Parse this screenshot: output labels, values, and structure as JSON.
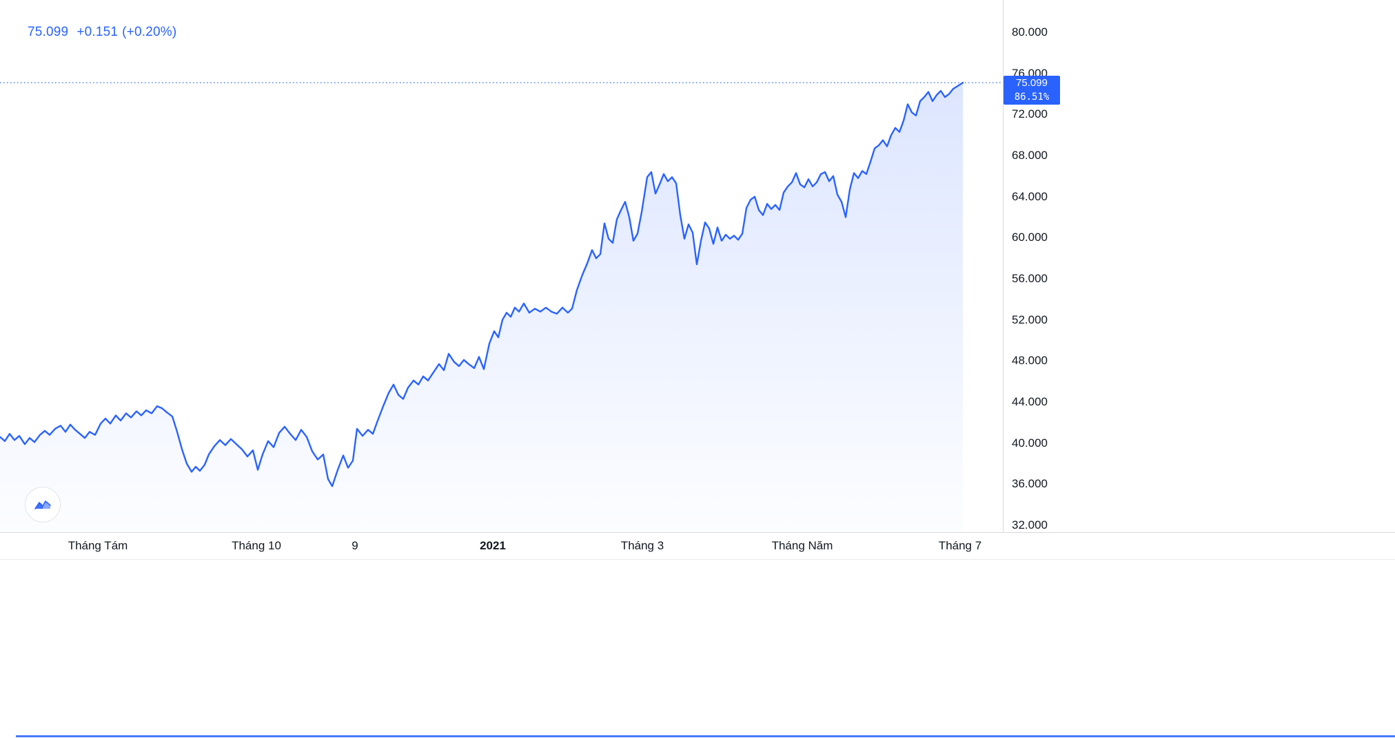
{
  "quote": {
    "last": "75.099",
    "change": "+0.151",
    "change_pct": "(+0.20%)"
  },
  "price_badge": {
    "value": "75.099",
    "percent": "86.51%"
  },
  "colors": {
    "accent": "#2962ff",
    "text": "#131722",
    "axis_line": "#d6d9e0",
    "badge_bg": "#2962ff",
    "badge_text": "#ffffff"
  },
  "chart_data": {
    "type": "area",
    "title": "",
    "xlabel": "",
    "ylabel": "",
    "ylim": [
      32,
      80
    ],
    "grid": false,
    "line_color": "#2962ff",
    "fill_top": "rgba(41,98,255,0.16)",
    "fill_bottom": "rgba(41,98,255,0.01)",
    "last_price": 75.099,
    "change": "+0.151",
    "change_percent": "+0.20%",
    "range_percent": "86.51%",
    "y_ticks": [
      {
        "label": "80.000",
        "price": 80
      },
      {
        "label": "76.000",
        "price": 76
      },
      {
        "label": "72.000",
        "price": 72
      },
      {
        "label": "68.000",
        "price": 68
      },
      {
        "label": "64.000",
        "price": 64
      },
      {
        "label": "60.000",
        "price": 60
      },
      {
        "label": "56.000",
        "price": 56
      },
      {
        "label": "52.000",
        "price": 52
      },
      {
        "label": "48.000",
        "price": 48
      },
      {
        "label": "44.000",
        "price": 44
      },
      {
        "label": "40.000",
        "price": 40
      },
      {
        "label": "36.000",
        "price": 36
      },
      {
        "label": "32.000",
        "price": 32
      }
    ],
    "x_ticks": [
      {
        "label": "Tháng Tám",
        "x": 142,
        "bold": false
      },
      {
        "label": "Tháng 10",
        "x": 372,
        "bold": false
      },
      {
        "label": "9",
        "x": 515,
        "bold": false
      },
      {
        "label": "2021",
        "x": 715,
        "bold": true
      },
      {
        "label": "Tháng 3",
        "x": 932,
        "bold": false
      },
      {
        "label": "Tháng Năm",
        "x": 1164,
        "bold": false
      },
      {
        "label": "Tháng 7",
        "x": 1393,
        "bold": false
      }
    ],
    "series": [
      {
        "name": "price",
        "points": [
          [
            0,
            40.6
          ],
          [
            7,
            40.2
          ],
          [
            14,
            40.9
          ],
          [
            21,
            40.3
          ],
          [
            28,
            40.7
          ],
          [
            36,
            39.9
          ],
          [
            43,
            40.5
          ],
          [
            50,
            40.1
          ],
          [
            58,
            40.8
          ],
          [
            65,
            41.2
          ],
          [
            72,
            40.8
          ],
          [
            80,
            41.4
          ],
          [
            88,
            41.7
          ],
          [
            95,
            41.1
          ],
          [
            102,
            41.8
          ],
          [
            109,
            41.3
          ],
          [
            116,
            40.9
          ],
          [
            123,
            40.5
          ],
          [
            130,
            41.1
          ],
          [
            138,
            40.8
          ],
          [
            146,
            41.9
          ],
          [
            153,
            42.4
          ],
          [
            160,
            41.9
          ],
          [
            168,
            42.7
          ],
          [
            175,
            42.2
          ],
          [
            183,
            42.9
          ],
          [
            190,
            42.5
          ],
          [
            198,
            43.1
          ],
          [
            205,
            42.7
          ],
          [
            212,
            43.2
          ],
          [
            220,
            42.9
          ],
          [
            228,
            43.6
          ],
          [
            235,
            43.4
          ],
          [
            242,
            43.0
          ],
          [
            250,
            42.6
          ],
          [
            257,
            41.1
          ],
          [
            264,
            39.4
          ],
          [
            271,
            38.0
          ],
          [
            278,
            37.2
          ],
          [
            284,
            37.7
          ],
          [
            290,
            37.3
          ],
          [
            297,
            37.9
          ],
          [
            303,
            38.9
          ],
          [
            311,
            39.7
          ],
          [
            319,
            40.3
          ],
          [
            327,
            39.8
          ],
          [
            335,
            40.4
          ],
          [
            343,
            39.9
          ],
          [
            351,
            39.4
          ],
          [
            359,
            38.7
          ],
          [
            367,
            39.3
          ],
          [
            374,
            37.4
          ],
          [
            381,
            38.9
          ],
          [
            389,
            40.2
          ],
          [
            397,
            39.6
          ],
          [
            405,
            41.0
          ],
          [
            413,
            41.6
          ],
          [
            421,
            40.9
          ],
          [
            429,
            40.3
          ],
          [
            437,
            41.3
          ],
          [
            445,
            40.6
          ],
          [
            453,
            39.2
          ],
          [
            461,
            38.4
          ],
          [
            469,
            38.9
          ],
          [
            476,
            36.5
          ],
          [
            482,
            35.8
          ],
          [
            490,
            37.4
          ],
          [
            498,
            38.8
          ],
          [
            505,
            37.6
          ],
          [
            512,
            38.3
          ],
          [
            518,
            41.4
          ],
          [
            526,
            40.7
          ],
          [
            534,
            41.3
          ],
          [
            541,
            40.9
          ],
          [
            548,
            42.2
          ],
          [
            556,
            43.6
          ],
          [
            564,
            44.9
          ],
          [
            571,
            45.7
          ],
          [
            578,
            44.7
          ],
          [
            585,
            44.3
          ],
          [
            592,
            45.4
          ],
          [
            600,
            46.1
          ],
          [
            607,
            45.7
          ],
          [
            614,
            46.5
          ],
          [
            621,
            46.1
          ],
          [
            629,
            46.9
          ],
          [
            637,
            47.7
          ],
          [
            644,
            47.1
          ],
          [
            651,
            48.7
          ],
          [
            659,
            47.9
          ],
          [
            666,
            47.5
          ],
          [
            673,
            48.1
          ],
          [
            680,
            47.7
          ],
          [
            688,
            47.3
          ],
          [
            695,
            48.4
          ],
          [
            702,
            47.2
          ],
          [
            710,
            49.7
          ],
          [
            717,
            50.9
          ],
          [
            723,
            50.3
          ],
          [
            729,
            52.0
          ],
          [
            735,
            52.7
          ],
          [
            741,
            52.3
          ],
          [
            747,
            53.2
          ],
          [
            753,
            52.8
          ],
          [
            760,
            53.6
          ],
          [
            768,
            52.7
          ],
          [
            776,
            53.1
          ],
          [
            784,
            52.8
          ],
          [
            792,
            53.2
          ],
          [
            800,
            52.8
          ],
          [
            808,
            52.6
          ],
          [
            816,
            53.2
          ],
          [
            824,
            52.7
          ],
          [
            830,
            53.1
          ],
          [
            837,
            54.9
          ],
          [
            845,
            56.4
          ],
          [
            852,
            57.5
          ],
          [
            859,
            58.8
          ],
          [
            865,
            58.0
          ],
          [
            871,
            58.4
          ],
          [
            877,
            61.4
          ],
          [
            883,
            59.9
          ],
          [
            889,
            59.5
          ],
          [
            895,
            61.8
          ],
          [
            901,
            62.7
          ],
          [
            907,
            63.5
          ],
          [
            913,
            62.0
          ],
          [
            919,
            59.7
          ],
          [
            925,
            60.4
          ],
          [
            931,
            62.5
          ],
          [
            939,
            65.9
          ],
          [
            945,
            66.4
          ],
          [
            951,
            64.3
          ],
          [
            957,
            65.2
          ],
          [
            963,
            66.2
          ],
          [
            969,
            65.5
          ],
          [
            975,
            65.9
          ],
          [
            981,
            65.3
          ],
          [
            987,
            62.2
          ],
          [
            993,
            59.9
          ],
          [
            999,
            61.3
          ],
          [
            1005,
            60.5
          ],
          [
            1011,
            57.4
          ],
          [
            1017,
            59.7
          ],
          [
            1023,
            61.5
          ],
          [
            1029,
            60.9
          ],
          [
            1035,
            59.4
          ],
          [
            1041,
            61.0
          ],
          [
            1047,
            59.7
          ],
          [
            1053,
            60.3
          ],
          [
            1059,
            59.9
          ],
          [
            1065,
            60.2
          ],
          [
            1071,
            59.8
          ],
          [
            1077,
            60.4
          ],
          [
            1083,
            62.9
          ],
          [
            1089,
            63.7
          ],
          [
            1095,
            64.0
          ],
          [
            1101,
            62.7
          ],
          [
            1107,
            62.2
          ],
          [
            1113,
            63.3
          ],
          [
            1119,
            62.8
          ],
          [
            1125,
            63.2
          ],
          [
            1131,
            62.7
          ],
          [
            1137,
            64.4
          ],
          [
            1143,
            65.0
          ],
          [
            1149,
            65.4
          ],
          [
            1155,
            66.3
          ],
          [
            1161,
            65.2
          ],
          [
            1167,
            64.9
          ],
          [
            1173,
            65.7
          ],
          [
            1179,
            65.0
          ],
          [
            1185,
            65.4
          ],
          [
            1191,
            66.2
          ],
          [
            1197,
            66.4
          ],
          [
            1203,
            65.5
          ],
          [
            1209,
            66.0
          ],
          [
            1215,
            64.2
          ],
          [
            1221,
            63.5
          ],
          [
            1227,
            62.0
          ],
          [
            1233,
            64.7
          ],
          [
            1239,
            66.3
          ],
          [
            1245,
            65.8
          ],
          [
            1251,
            66.5
          ],
          [
            1257,
            66.2
          ],
          [
            1263,
            67.4
          ],
          [
            1269,
            68.7
          ],
          [
            1275,
            69.0
          ],
          [
            1281,
            69.5
          ],
          [
            1287,
            68.9
          ],
          [
            1293,
            70.0
          ],
          [
            1299,
            70.7
          ],
          [
            1305,
            70.3
          ],
          [
            1311,
            71.4
          ],
          [
            1317,
            73.0
          ],
          [
            1323,
            72.2
          ],
          [
            1329,
            71.9
          ],
          [
            1335,
            73.3
          ],
          [
            1341,
            73.7
          ],
          [
            1347,
            74.2
          ],
          [
            1353,
            73.3
          ],
          [
            1359,
            73.9
          ],
          [
            1365,
            74.3
          ],
          [
            1371,
            73.7
          ],
          [
            1377,
            74.0
          ],
          [
            1383,
            74.5
          ],
          [
            1390,
            74.8
          ],
          [
            1397,
            75.099
          ]
        ]
      }
    ]
  }
}
